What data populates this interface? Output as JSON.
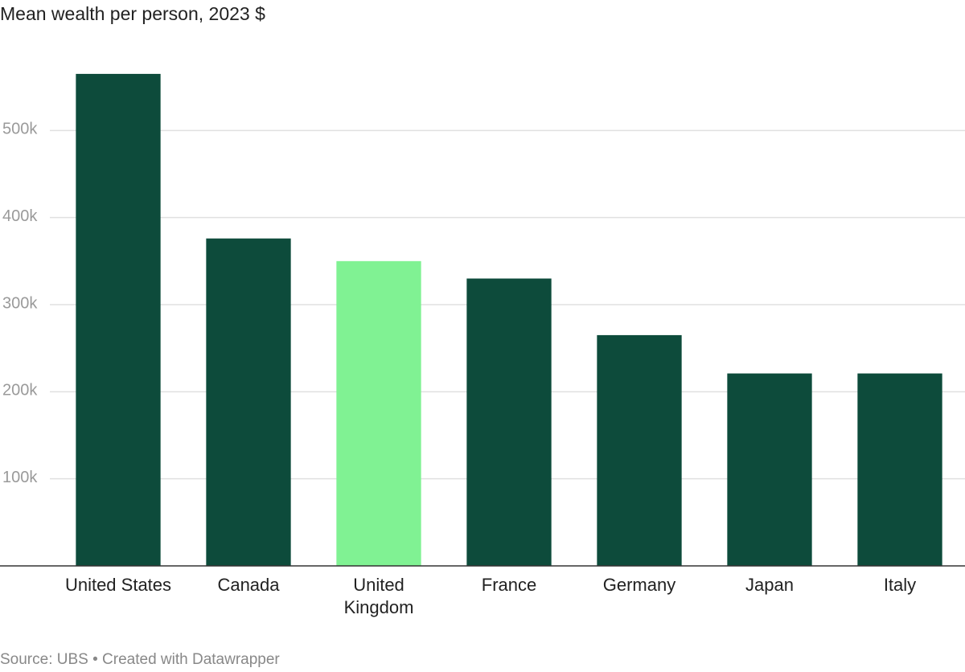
{
  "chart_data": {
    "type": "bar",
    "title": "Mean wealth per person, 2023 $",
    "categories": [
      "United States",
      "Canada",
      "United Kingdom",
      "France",
      "Germany",
      "Japan",
      "Italy"
    ],
    "values": [
      565000,
      376000,
      350000,
      330000,
      265000,
      221000,
      221000
    ],
    "colors": [
      "#0d4b3b",
      "#0d4b3b",
      "#80f293",
      "#0d4b3b",
      "#0d4b3b",
      "#0d4b3b",
      "#0d4b3b"
    ],
    "ylim": [
      0,
      600000
    ],
    "yticks": [
      {
        "value": 100000,
        "label": "100k"
      },
      {
        "value": 200000,
        "label": "200k"
      },
      {
        "value": 300000,
        "label": "300k"
      },
      {
        "value": 400000,
        "label": "400k"
      },
      {
        "value": 500000,
        "label": "500k"
      }
    ],
    "grid": true,
    "source": "Source: UBS • Created with Datawrapper"
  }
}
